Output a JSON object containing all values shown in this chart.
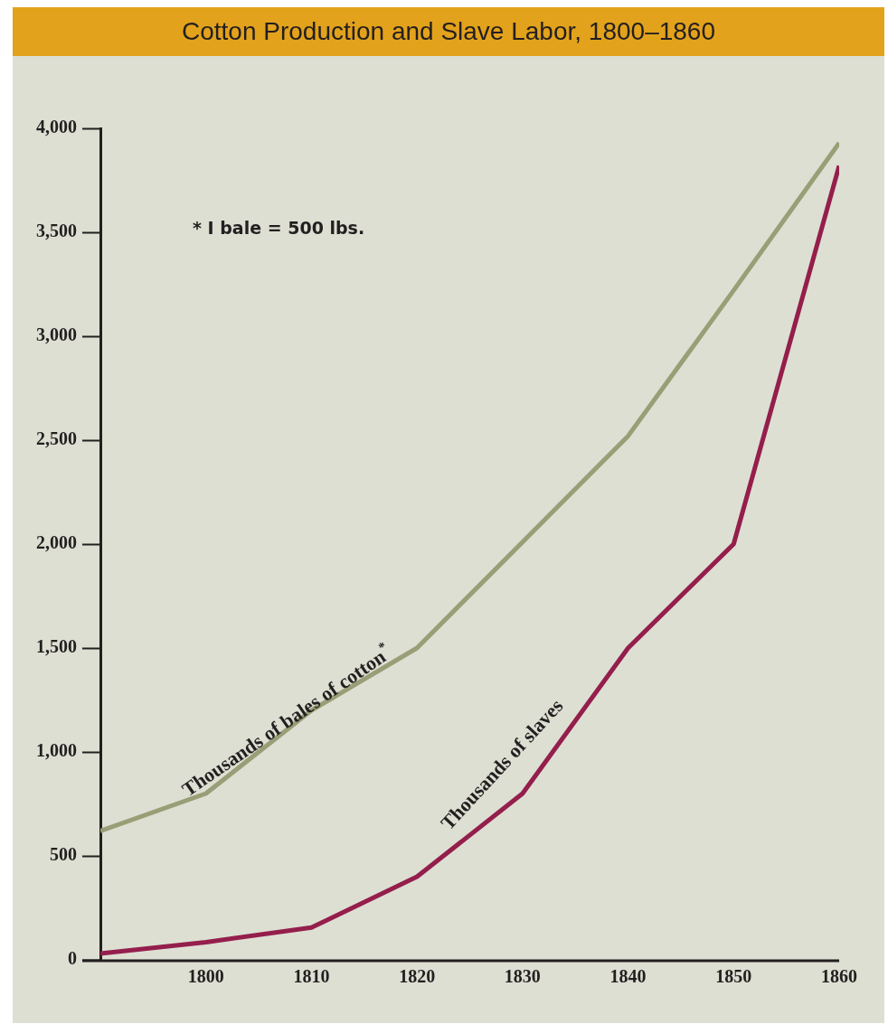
{
  "chart_data": {
    "type": "line",
    "title": "Cotton Production and Slave Labor, 1800–1860",
    "x": [
      1790,
      1800,
      1810,
      1820,
      1830,
      1840,
      1850,
      1860
    ],
    "series": [
      {
        "name": "Thousands of bales of cotton$^{*}$",
        "color": "#999e76",
        "values": [
          620,
          800,
          1200,
          1500,
          2010,
          2520,
          3220,
          3930
        ]
      },
      {
        "name": "Thousands of slaves",
        "color": "#941e4c",
        "values": [
          30,
          85,
          155,
          400,
          800,
          1500,
          2000,
          3820
        ]
      }
    ],
    "xlim": [
      1790,
      1860
    ],
    "xticks": [
      1800,
      1810,
      1820,
      1830,
      1840,
      1850,
      1860
    ],
    "ylim": [
      0,
      4000
    ],
    "yticks": [
      {
        "value": 0,
        "label": "0"
      },
      {
        "value": 500,
        "label": "500"
      },
      {
        "value": 1000,
        "label": "1,000"
      },
      {
        "value": 1500,
        "label": "1,500"
      },
      {
        "value": 2000,
        "label": "2,000"
      },
      {
        "value": 2500,
        "label": "2,500"
      },
      {
        "value": 3000,
        "label": "3,000"
      },
      {
        "value": 3500,
        "label": "3,500"
      },
      {
        "value": 4000,
        "label": "4,000"
      }
    ],
    "annotations": [
      "* I bale = 500 lbs."
    ],
    "grid": false,
    "legend": false,
    "marker": "none",
    "line_style": "solid"
  }
}
